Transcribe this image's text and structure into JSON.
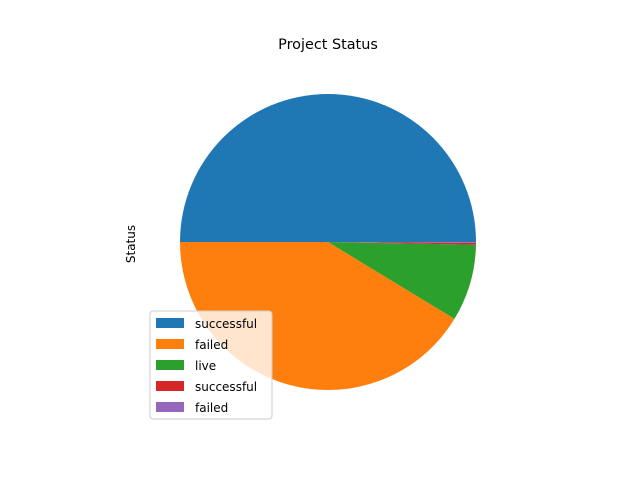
{
  "chart_data": {
    "type": "pie",
    "title": "Project Status",
    "ylabel": "Status",
    "slices": [
      {
        "label": "successful",
        "value": 50.0,
        "color": "#1f77b4"
      },
      {
        "label": "failed",
        "value": 41.3,
        "color": "#ff7f0e"
      },
      {
        "label": "live",
        "value": 8.4,
        "color": "#2ca02c"
      },
      {
        "label": "successful",
        "value": 0.2,
        "color": "#d62728"
      },
      {
        "label": "failed",
        "value": 0.1,
        "color": "#9467bd"
      }
    ],
    "start_angle": 0,
    "direction": "counterclockwise",
    "legend": {
      "position": "lower-left"
    }
  }
}
